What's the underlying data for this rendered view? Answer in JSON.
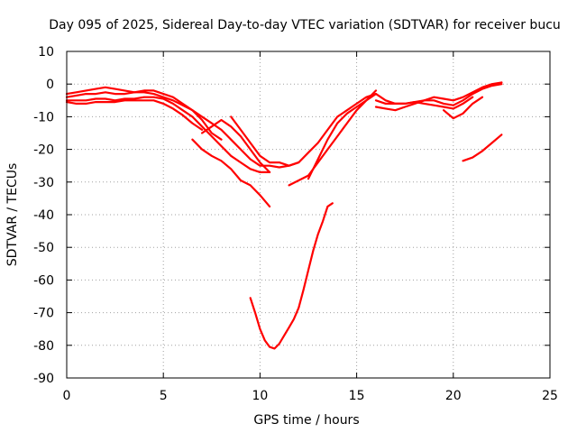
{
  "chart_data": {
    "type": "line",
    "title": "Day 095 of 2025, Sidereal Day-to-day VTEC variation (SDTVAR) for receiver bucu",
    "xlabel": "GPS time / hours",
    "ylabel": "SDTVAR / TECUs",
    "xlim": [
      0,
      25
    ],
    "ylim": [
      -90,
      10
    ],
    "xticks": [
      "0",
      "5",
      "10",
      "15",
      "20",
      "25"
    ],
    "yticks": [
      "10",
      "0",
      "-10",
      "-20",
      "-30",
      "-40",
      "-50",
      "-60",
      "-70",
      "-80",
      "-90"
    ],
    "grid": true,
    "legend": "none",
    "series_color": "#ff0000",
    "series": [
      {
        "name": "trace-1",
        "x": [
          0.0,
          0.5,
          1.0,
          1.5,
          2.0,
          2.5,
          3.0,
          3.5,
          4.0,
          4.5,
          5.0,
          5.5,
          6.0,
          6.5,
          7.0,
          7.5,
          8.0,
          8.5,
          9.0,
          9.5,
          10.0,
          10.5,
          11.0,
          11.5,
          12.0,
          12.5,
          13.0,
          13.5,
          14.0,
          14.5,
          15.0,
          15.5,
          16.0,
          16.5,
          17.0,
          17.5,
          18.0,
          18.5,
          19.0,
          19.5,
          20.0,
          20.5,
          21.0,
          21.5,
          22.0,
          22.5
        ],
        "y": [
          -4,
          -3.5,
          -3,
          -3,
          -2.5,
          -3,
          -3,
          -2.5,
          -2.5,
          -3,
          -4,
          -5,
          -6.5,
          -8,
          -10,
          -12,
          -14,
          -17,
          -20,
          -23,
          -25,
          -25,
          -25.5,
          -25,
          -24,
          -21,
          -18,
          -14,
          -10,
          -8,
          -6,
          -4,
          -3,
          -5,
          -6,
          -6,
          -5.5,
          -5,
          -5,
          -6,
          -6.5,
          -5,
          -3,
          -1.5,
          -0.5,
          0
        ]
      },
      {
        "name": "trace-2",
        "x": [
          0.0,
          0.5,
          1.0,
          1.5,
          2.0,
          2.5,
          3.0,
          3.5,
          4.0,
          4.5,
          5.0,
          5.5,
          6.0,
          6.5,
          7.0,
          7.5,
          8.0,
          8.5,
          9.0,
          9.5,
          10.0,
          10.5
        ],
        "y": [
          -5,
          -5,
          -5,
          -4.5,
          -4.5,
          -5,
          -4.5,
          -4.5,
          -4,
          -4,
          -4.5,
          -6,
          -8,
          -10,
          -13,
          -16,
          -19,
          -22,
          -24,
          -26,
          -27,
          -27
        ]
      },
      {
        "name": "trace-3",
        "x": [
          0.0,
          0.5,
          1.0,
          1.5,
          2.0,
          2.5,
          3.0,
          3.5,
          4.0,
          4.5,
          5.0,
          5.5,
          6.0,
          6.5,
          7.0,
          7.5,
          8.0
        ],
        "y": [
          -3,
          -2.5,
          -2,
          -1.5,
          -1,
          -1.5,
          -2,
          -2.5,
          -2,
          -2,
          -3,
          -4,
          -6,
          -8,
          -11,
          -15,
          -17
        ]
      },
      {
        "name": "trace-4",
        "x": [
          0.0,
          0.5,
          1.0,
          1.5,
          2.0,
          2.5,
          3.0,
          3.5,
          4.0,
          4.5,
          5.0,
          5.5,
          6.0,
          6.5,
          7.0
        ],
        "y": [
          -5.5,
          -6,
          -6,
          -5.5,
          -5.5,
          -5.5,
          -5,
          -5,
          -5,
          -5,
          -6,
          -7.5,
          -9.5,
          -12,
          -14
        ]
      },
      {
        "name": "trace-5",
        "x": [
          6.5,
          7.0,
          7.5,
          8.0,
          8.5,
          9.0,
          9.5,
          10.0,
          10.5
        ],
        "y": [
          -17,
          -20,
          -22,
          -23.5,
          -26,
          -29.5,
          -31,
          -34,
          -37.5
        ]
      },
      {
        "name": "trace-6",
        "x": [
          7.0,
          7.5,
          8.0,
          8.5,
          9.0,
          9.5,
          10.0,
          10.5
        ],
        "y": [
          -15,
          -13,
          -11,
          -13,
          -16,
          -20,
          -24,
          -27
        ]
      },
      {
        "name": "trace-7",
        "x": [
          8.5,
          9.0,
          9.5,
          10.0,
          10.5,
          11.0,
          11.5,
          12.0
        ],
        "y": [
          -10,
          -14,
          -18,
          -22,
          -24,
          -24,
          -25,
          -24
        ]
      },
      {
        "name": "trace-8",
        "x": [
          11.5,
          12.0,
          12.5,
          13.0,
          13.5,
          14.0,
          14.5,
          15.0,
          15.5,
          16.0
        ],
        "y": [
          -31,
          -29.5,
          -28,
          -24,
          -20,
          -16,
          -12,
          -8,
          -5,
          -2
        ]
      },
      {
        "name": "trace-9",
        "x": [
          12.5,
          13.0,
          13.5,
          14.0,
          14.5,
          15.0,
          15.5,
          16.0
        ],
        "y": [
          -29,
          -23,
          -17,
          -12,
          -9,
          -7,
          -5,
          -3
        ]
      },
      {
        "name": "trace-10",
        "x": [
          16.0,
          16.5,
          17.0,
          17.5,
          18.0,
          18.5,
          19.0,
          19.5,
          20.0,
          20.5,
          21.0,
          21.5,
          22.0,
          22.5
        ],
        "y": [
          -7,
          -7.5,
          -8,
          -7,
          -6,
          -5,
          -4,
          -4.5,
          -5,
          -4,
          -2.5,
          -1,
          0,
          0.5
        ]
      },
      {
        "name": "trace-11",
        "x": [
          16.0,
          16.5,
          17.0,
          17.5,
          18.0,
          18.5,
          19.0,
          19.5,
          20.0,
          20.5,
          21.0
        ],
        "y": [
          -5,
          -6,
          -6,
          -6,
          -5.5,
          -6,
          -6.5,
          -7,
          -7.5,
          -6,
          -4
        ]
      },
      {
        "name": "trace-12",
        "x": [
          19.5,
          20.0,
          20.5,
          21.0,
          21.5
        ],
        "y": [
          -8,
          -10.5,
          -9,
          -6,
          -4
        ]
      },
      {
        "name": "trace-13",
        "x": [
          20.5,
          21.0,
          21.5,
          22.0,
          22.5
        ],
        "y": [
          -23.5,
          -22.5,
          -20.5,
          -18,
          -15.5
        ]
      },
      {
        "name": "trace-14",
        "x": [
          9.5,
          9.75,
          10.0,
          10.25,
          10.5,
          10.75,
          11.0,
          11.25,
          11.5,
          11.75,
          12.0,
          12.25,
          12.5,
          12.75,
          13.0,
          13.25,
          13.5,
          13.75
        ],
        "y": [
          -65.5,
          -70,
          -75,
          -78.5,
          -80.5,
          -81,
          -79.5,
          -77,
          -74.5,
          -72,
          -68.5,
          -63,
          -57,
          -51,
          -46,
          -42,
          -37.5,
          -36.5
        ]
      }
    ]
  }
}
